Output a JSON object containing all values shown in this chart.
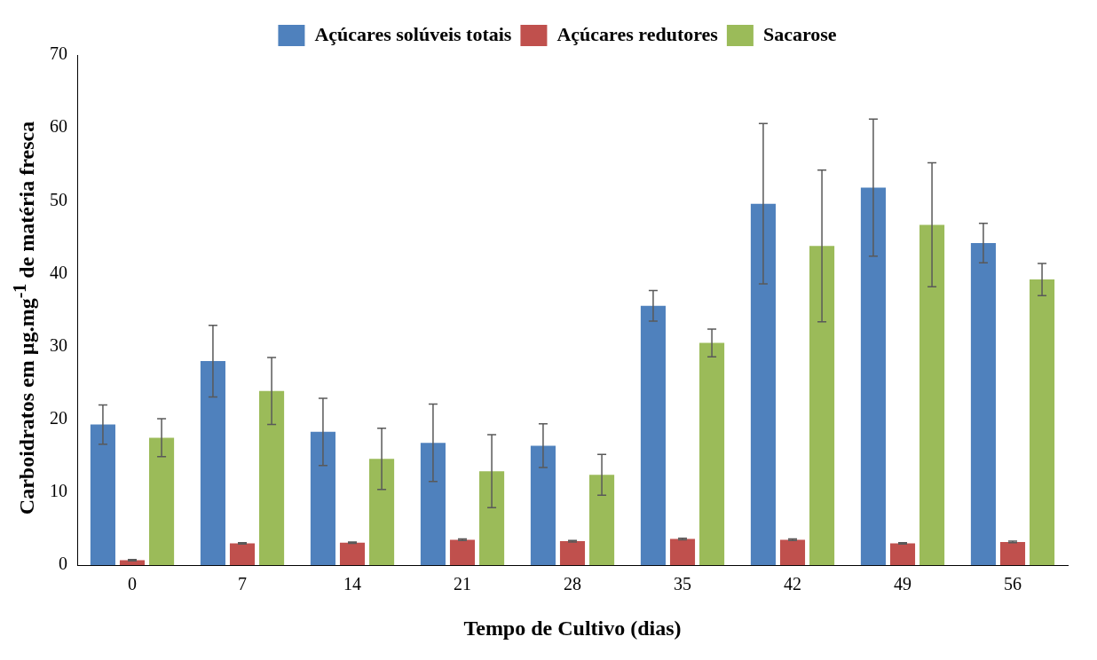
{
  "chart_data": {
    "type": "bar",
    "xlabel": "Tempo de Cultivo (dias)",
    "ylabel": "Carboidratos em µg.mg$^{-1}$ de matéria fresca",
    "categories": [
      "0",
      "7",
      "14",
      "21",
      "28",
      "35",
      "42",
      "49",
      "56"
    ],
    "series": [
      {
        "name": "Açúcares solúveis totais",
        "color": "#4f81bd",
        "values": [
          19.3,
          28.0,
          18.3,
          16.8,
          16.4,
          35.6,
          49.6,
          51.8,
          44.2
        ],
        "errors": [
          2.7,
          4.9,
          4.6,
          5.3,
          3.0,
          2.1,
          11,
          9.4,
          2.7
        ]
      },
      {
        "name": "Açúcares redutores",
        "color": "#c0504d",
        "values": [
          0.7,
          3.0,
          3.1,
          3.5,
          3.3,
          3.6,
          3.5,
          3.0,
          3.2
        ],
        "errors": [
          0.1,
          0.1,
          0.1,
          0.1,
          0.1,
          0.1,
          0.1,
          0.1,
          0.1
        ]
      },
      {
        "name": "Sacarose",
        "color": "#9bbb59",
        "values": [
          17.5,
          23.9,
          14.6,
          12.9,
          12.4,
          30.5,
          43.8,
          46.7,
          39.2
        ],
        "errors": [
          2.6,
          4.6,
          4.2,
          5.0,
          2.8,
          1.9,
          10.4,
          8.5,
          2.2
        ]
      }
    ],
    "ylim": [
      0,
      70
    ],
    "yticks": [
      0,
      10,
      20,
      30,
      40,
      50,
      60,
      70
    ],
    "grid": false,
    "legend": "top"
  }
}
